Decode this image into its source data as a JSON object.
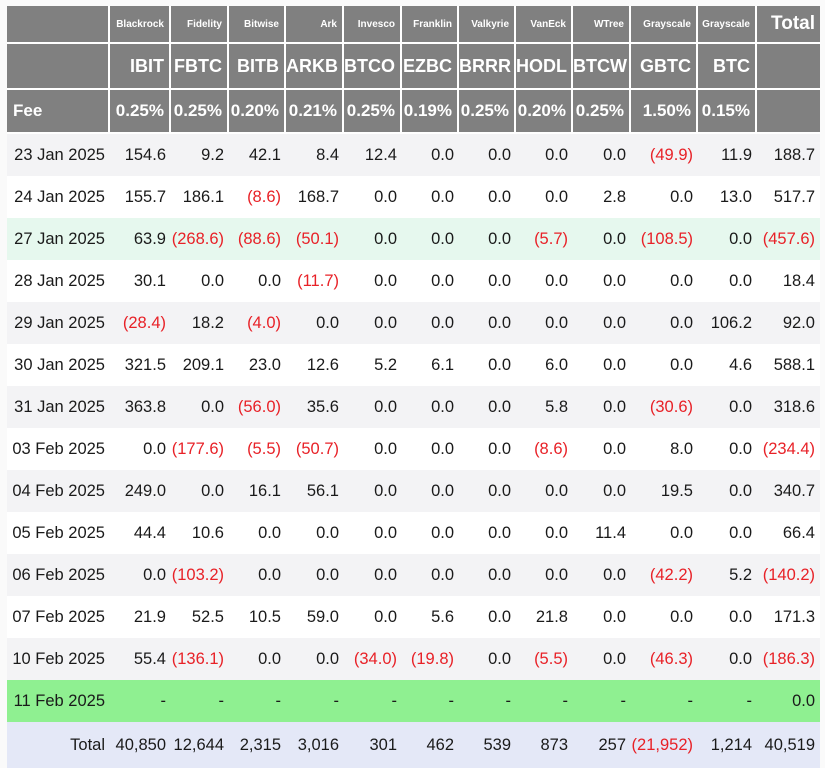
{
  "colors": {
    "page_bg": "#fafafa",
    "header_bg": "#808080",
    "header_text": "#ffffff",
    "row_stripe": "#f3f3f5",
    "row_white": "#ffffff",
    "row_mint": "#e6f8ee",
    "row_green": "#8ff091",
    "total_row_bg": "#e4e8f7",
    "text": "#1a1a1a",
    "negative": "#e82127"
  },
  "table": {
    "providers": [
      "Blackrock",
      "Fidelity",
      "Bitwise",
      "Ark",
      "Invesco",
      "Franklin",
      "Valkyrie",
      "VanEck",
      "WTree",
      "Grayscale",
      "Grayscale"
    ],
    "total_header": "Total",
    "tickers": [
      "IBIT",
      "FBTC",
      "BITB",
      "ARKB",
      "BTCO",
      "EZBC",
      "BRRR",
      "HODL",
      "BTCW",
      "GBTC",
      "BTC"
    ],
    "fee_label": "Fee",
    "fees": [
      "0.25%",
      "0.25%",
      "0.20%",
      "0.21%",
      "0.25%",
      "0.19%",
      "0.25%",
      "0.20%",
      "0.25%",
      "1.50%",
      "0.15%"
    ],
    "rows": [
      {
        "date": "23 Jan 2025",
        "highlight": "stripe",
        "values": [
          "154.6",
          "9.2",
          "42.1",
          "8.4",
          "12.4",
          "0.0",
          "0.0",
          "0.0",
          "0.0",
          "(49.9)",
          "11.9",
          "188.7"
        ]
      },
      {
        "date": "24 Jan 2025",
        "highlight": "white",
        "values": [
          "155.7",
          "186.1",
          "(8.6)",
          "168.7",
          "0.0",
          "0.0",
          "0.0",
          "0.0",
          "2.8",
          "0.0",
          "13.0",
          "517.7"
        ]
      },
      {
        "date": "27 Jan 2025",
        "highlight": "mint",
        "values": [
          "63.9",
          "(268.6)",
          "(88.6)",
          "(50.1)",
          "0.0",
          "0.0",
          "0.0",
          "(5.7)",
          "0.0",
          "(108.5)",
          "0.0",
          "(457.6)"
        ]
      },
      {
        "date": "28 Jan 2025",
        "highlight": "white",
        "values": [
          "30.1",
          "0.0",
          "0.0",
          "(11.7)",
          "0.0",
          "0.0",
          "0.0",
          "0.0",
          "0.0",
          "0.0",
          "0.0",
          "18.4"
        ]
      },
      {
        "date": "29 Jan 2025",
        "highlight": "stripe",
        "values": [
          "(28.4)",
          "18.2",
          "(4.0)",
          "0.0",
          "0.0",
          "0.0",
          "0.0",
          "0.0",
          "0.0",
          "0.0",
          "106.2",
          "92.0"
        ]
      },
      {
        "date": "30 Jan 2025",
        "highlight": "white",
        "values": [
          "321.5",
          "209.1",
          "23.0",
          "12.6",
          "5.2",
          "6.1",
          "0.0",
          "6.0",
          "0.0",
          "0.0",
          "4.6",
          "588.1"
        ]
      },
      {
        "date": "31 Jan 2025",
        "highlight": "stripe",
        "values": [
          "363.8",
          "0.0",
          "(56.0)",
          "35.6",
          "0.0",
          "0.0",
          "0.0",
          "5.8",
          "0.0",
          "(30.6)",
          "0.0",
          "318.6"
        ]
      },
      {
        "date": "03 Feb 2025",
        "highlight": "white",
        "values": [
          "0.0",
          "(177.6)",
          "(5.5)",
          "(50.7)",
          "0.0",
          "0.0",
          "0.0",
          "(8.6)",
          "0.0",
          "8.0",
          "0.0",
          "(234.4)"
        ]
      },
      {
        "date": "04 Feb 2025",
        "highlight": "stripe",
        "values": [
          "249.0",
          "0.0",
          "16.1",
          "56.1",
          "0.0",
          "0.0",
          "0.0",
          "0.0",
          "0.0",
          "19.5",
          "0.0",
          "340.7"
        ]
      },
      {
        "date": "05 Feb 2025",
        "highlight": "white",
        "values": [
          "44.4",
          "10.6",
          "0.0",
          "0.0",
          "0.0",
          "0.0",
          "0.0",
          "0.0",
          "11.4",
          "0.0",
          "0.0",
          "66.4"
        ]
      },
      {
        "date": "06 Feb 2025",
        "highlight": "stripe",
        "values": [
          "0.0",
          "(103.2)",
          "0.0",
          "0.0",
          "0.0",
          "0.0",
          "0.0",
          "0.0",
          "0.0",
          "(42.2)",
          "5.2",
          "(140.2)"
        ]
      },
      {
        "date": "07 Feb 2025",
        "highlight": "white",
        "values": [
          "21.9",
          "52.5",
          "10.5",
          "59.0",
          "0.0",
          "5.6",
          "0.0",
          "21.8",
          "0.0",
          "0.0",
          "0.0",
          "171.3"
        ]
      },
      {
        "date": "10 Feb 2025",
        "highlight": "stripe",
        "values": [
          "55.4",
          "(136.1)",
          "0.0",
          "0.0",
          "(34.0)",
          "(19.8)",
          "0.0",
          "(5.5)",
          "0.0",
          "(46.3)",
          "0.0",
          "(186.3)"
        ]
      },
      {
        "date": "11 Feb 2025",
        "highlight": "green",
        "values": [
          "-",
          "-",
          "-",
          "-",
          "-",
          "-",
          "-",
          "-",
          "-",
          "-",
          "-",
          "0.0"
        ]
      }
    ],
    "total": {
      "label": "Total",
      "values": [
        "40,850",
        "12,644",
        "2,315",
        "3,016",
        "301",
        "462",
        "539",
        "873",
        "257",
        "(21,952)",
        "1,214",
        "40,519"
      ]
    }
  },
  "chart_data": {
    "type": "table",
    "columns": [
      {
        "provider": "Blackrock",
        "ticker": "IBIT",
        "fee_pct": 0.25
      },
      {
        "provider": "Fidelity",
        "ticker": "FBTC",
        "fee_pct": 0.25
      },
      {
        "provider": "Bitwise",
        "ticker": "BITB",
        "fee_pct": 0.2
      },
      {
        "provider": "Ark",
        "ticker": "ARKB",
        "fee_pct": 0.21
      },
      {
        "provider": "Invesco",
        "ticker": "BTCO",
        "fee_pct": 0.25
      },
      {
        "provider": "Franklin",
        "ticker": "EZBC",
        "fee_pct": 0.19
      },
      {
        "provider": "Valkyrie",
        "ticker": "BRRR",
        "fee_pct": 0.25
      },
      {
        "provider": "VanEck",
        "ticker": "HODL",
        "fee_pct": 0.2
      },
      {
        "provider": "WTree",
        "ticker": "BTCW",
        "fee_pct": 0.25
      },
      {
        "provider": "Grayscale",
        "ticker": "GBTC",
        "fee_pct": 1.5
      },
      {
        "provider": "Grayscale",
        "ticker": "BTC",
        "fee_pct": 0.15
      },
      {
        "provider": "",
        "ticker": "Total",
        "fee_pct": null
      }
    ],
    "dates": [
      "23 Jan 2025",
      "24 Jan 2025",
      "27 Jan 2025",
      "28 Jan 2025",
      "29 Jan 2025",
      "30 Jan 2025",
      "31 Jan 2025",
      "03 Feb 2025",
      "04 Feb 2025",
      "05 Feb 2025",
      "06 Feb 2025",
      "07 Feb 2025",
      "10 Feb 2025",
      "11 Feb 2025"
    ],
    "values": [
      [
        154.6,
        9.2,
        42.1,
        8.4,
        12.4,
        0.0,
        0.0,
        0.0,
        0.0,
        -49.9,
        11.9,
        188.7
      ],
      [
        155.7,
        186.1,
        -8.6,
        168.7,
        0.0,
        0.0,
        0.0,
        0.0,
        2.8,
        0.0,
        13.0,
        517.7
      ],
      [
        63.9,
        -268.6,
        -88.6,
        -50.1,
        0.0,
        0.0,
        0.0,
        -5.7,
        0.0,
        -108.5,
        0.0,
        -457.6
      ],
      [
        30.1,
        0.0,
        0.0,
        -11.7,
        0.0,
        0.0,
        0.0,
        0.0,
        0.0,
        0.0,
        0.0,
        18.4
      ],
      [
        -28.4,
        18.2,
        -4.0,
        0.0,
        0.0,
        0.0,
        0.0,
        0.0,
        0.0,
        0.0,
        106.2,
        92.0
      ],
      [
        321.5,
        209.1,
        23.0,
        12.6,
        5.2,
        6.1,
        0.0,
        6.0,
        0.0,
        0.0,
        4.6,
        588.1
      ],
      [
        363.8,
        0.0,
        -56.0,
        35.6,
        0.0,
        0.0,
        0.0,
        5.8,
        0.0,
        -30.6,
        0.0,
        318.6
      ],
      [
        0.0,
        -177.6,
        -5.5,
        -50.7,
        0.0,
        0.0,
        0.0,
        -8.6,
        0.0,
        8.0,
        0.0,
        -234.4
      ],
      [
        249.0,
        0.0,
        16.1,
        56.1,
        0.0,
        0.0,
        0.0,
        0.0,
        0.0,
        19.5,
        0.0,
        340.7
      ],
      [
        44.4,
        10.6,
        0.0,
        0.0,
        0.0,
        0.0,
        0.0,
        0.0,
        11.4,
        0.0,
        0.0,
        66.4
      ],
      [
        0.0,
        -103.2,
        0.0,
        0.0,
        0.0,
        0.0,
        0.0,
        0.0,
        0.0,
        -42.2,
        5.2,
        -140.2
      ],
      [
        21.9,
        52.5,
        10.5,
        59.0,
        0.0,
        5.6,
        0.0,
        21.8,
        0.0,
        0.0,
        0.0,
        171.3
      ],
      [
        55.4,
        -136.1,
        0.0,
        0.0,
        -34.0,
        -19.8,
        0.0,
        -5.5,
        0.0,
        -46.3,
        0.0,
        -186.3
      ],
      [
        null,
        null,
        null,
        null,
        null,
        null,
        null,
        null,
        null,
        null,
        null,
        0.0
      ]
    ],
    "totals": [
      40850,
      12644,
      2315,
      3016,
      301,
      462,
      539,
      873,
      257,
      -21952,
      1214,
      40519
    ]
  }
}
